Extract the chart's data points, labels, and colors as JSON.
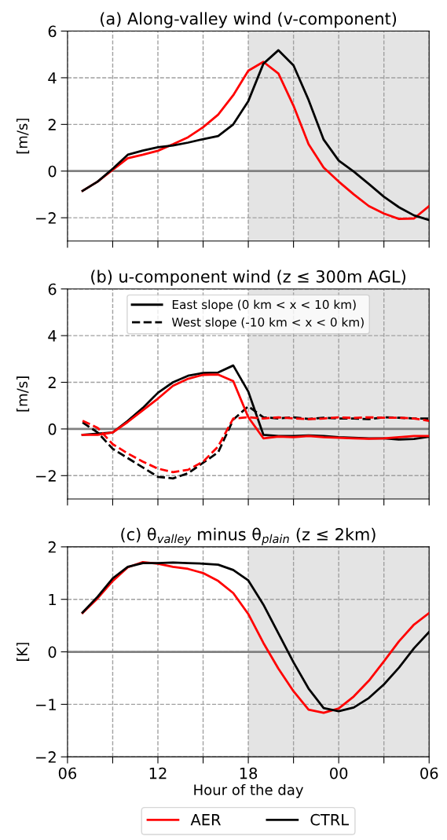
{
  "chart_data": [
    {
      "type": "line",
      "title": "(a) Along-valley wind (v-component)",
      "ylabel": "[m/s]",
      "x": [
        7,
        8,
        9,
        10,
        11,
        12,
        13,
        14,
        15,
        16,
        17,
        18,
        19,
        20,
        21,
        22,
        23,
        24,
        25,
        26,
        27,
        28,
        29,
        30
      ],
      "series": [
        {
          "color": "#ff0000",
          "values": [
            -0.85,
            -0.45,
            0.05,
            0.55,
            0.7,
            0.87,
            1.15,
            1.45,
            1.88,
            2.42,
            3.25,
            4.3,
            4.68,
            4.18,
            2.8,
            1.15,
            0.15,
            -0.45,
            -1.0,
            -1.5,
            -1.82,
            -2.05,
            -2.03,
            -1.5
          ]
        },
        {
          "color": "#000000",
          "values": [
            -0.85,
            -0.45,
            0.1,
            0.7,
            0.88,
            1.02,
            1.1,
            1.22,
            1.37,
            1.5,
            2.0,
            3.0,
            4.6,
            5.18,
            4.53,
            3.05,
            1.35,
            0.45,
            -0.02,
            -0.55,
            -1.1,
            -1.55,
            -1.9,
            -2.1
          ]
        }
      ],
      "xlim": [
        6,
        30
      ],
      "xticks": [
        6,
        9,
        12,
        15,
        18,
        21,
        24,
        27,
        30
      ],
      "ylim": [
        -3,
        6
      ],
      "yticks": [
        -2,
        0,
        2,
        4,
        6
      ],
      "tick_labels": "y",
      "grid": true,
      "line_style": "solid",
      "ref_lines": [
        {
          "axis": "y",
          "value": 0,
          "color": "#808080"
        }
      ],
      "bands": [
        {
          "axis": "x",
          "from": 18,
          "to": 30,
          "color": "#e4e4e4"
        }
      ]
    },
    {
      "type": "line",
      "title": "(b) u-component wind (z ≤ 300m AGL)",
      "ylabel": "[m/s]",
      "x": [
        7,
        8,
        9,
        10,
        11,
        12,
        13,
        14,
        15,
        16,
        17,
        18,
        19,
        20,
        21,
        22,
        23,
        24,
        25,
        26,
        27,
        28,
        29,
        30
      ],
      "series": [
        {
          "name": "East slope (0 km < x < 10 km)",
          "color": "#000000",
          "line_style": "solid",
          "values": [
            -0.25,
            -0.2,
            -0.15,
            0.35,
            0.9,
            1.55,
            2.0,
            2.28,
            2.4,
            2.42,
            2.72,
            1.6,
            -0.25,
            -0.3,
            -0.3,
            -0.28,
            -0.3,
            -0.35,
            -0.38,
            -0.4,
            -0.4,
            -0.45,
            -0.43,
            -0.33
          ]
        },
        {
          "name": "West slope (-10 km < x < 0 km)",
          "color": "#000000",
          "line_style": "dashed",
          "values": [
            0.28,
            -0.15,
            -0.85,
            -1.25,
            -1.65,
            -2.05,
            -2.12,
            -1.9,
            -1.45,
            -1.0,
            0.4,
            0.97,
            0.5,
            0.45,
            0.5,
            0.43,
            0.48,
            0.45,
            0.45,
            0.42,
            0.5,
            0.48,
            0.45,
            0.45
          ]
        },
        {
          "color": "#ff0000",
          "line_style": "solid",
          "values": [
            -0.25,
            -0.25,
            -0.15,
            0.3,
            0.8,
            1.3,
            1.85,
            2.15,
            2.32,
            2.33,
            2.05,
            0.5,
            -0.4,
            -0.33,
            -0.35,
            -0.3,
            -0.35,
            -0.38,
            -0.4,
            -0.42,
            -0.4,
            -0.35,
            -0.3,
            -0.3
          ]
        },
        {
          "color": "#ff0000",
          "line_style": "dashed",
          "values": [
            0.35,
            0.05,
            -0.65,
            -1.05,
            -1.4,
            -1.7,
            -1.85,
            -1.75,
            -1.4,
            -0.75,
            0.45,
            0.5,
            0.45,
            0.5,
            0.45,
            0.42,
            0.45,
            0.5,
            0.47,
            0.5,
            0.48,
            0.48,
            0.45,
            0.35
          ]
        }
      ],
      "xlim": [
        6,
        30
      ],
      "xticks": [
        6,
        9,
        12,
        15,
        18,
        21,
        24,
        27,
        30
      ],
      "ylim": [
        -3,
        6
      ],
      "yticks": [
        -2,
        0,
        2,
        4,
        6
      ],
      "tick_labels": "y",
      "grid": true,
      "legend": "top",
      "ref_lines": [
        {
          "axis": "y",
          "value": 0,
          "color": "#808080"
        }
      ],
      "bands": [
        {
          "axis": "x",
          "from": 18,
          "to": 30,
          "color": "#e4e4e4"
        }
      ]
    },
    {
      "type": "line",
      "title": "(c) θ$_{valley}$ minus θ$_{plain}$ (z ≤ 2km)",
      "ylabel": "[K]",
      "xlabel": "Hour of the day",
      "x": [
        7,
        8,
        9,
        10,
        11,
        12,
        13,
        14,
        15,
        16,
        17,
        18,
        19,
        20,
        21,
        22,
        23,
        24,
        25,
        26,
        27,
        28,
        29,
        30
      ],
      "series": [
        {
          "name": "AER",
          "color": "#ff0000",
          "values": [
            0.74,
            1.02,
            1.35,
            1.61,
            1.71,
            1.68,
            1.62,
            1.58,
            1.5,
            1.35,
            1.12,
            0.72,
            0.17,
            -0.32,
            -0.75,
            -1.1,
            -1.16,
            -1.08,
            -0.85,
            -0.55,
            -0.18,
            0.2,
            0.52,
            0.74
          ]
        },
        {
          "name": "CTRL",
          "color": "#000000",
          "values": [
            0.75,
            1.05,
            1.4,
            1.62,
            1.69,
            1.69,
            1.7,
            1.69,
            1.68,
            1.66,
            1.56,
            1.36,
            0.9,
            0.35,
            -0.2,
            -0.7,
            -1.07,
            -1.13,
            -1.06,
            -0.88,
            -0.62,
            -0.3,
            0.07,
            0.38
          ]
        }
      ],
      "xlim": [
        6,
        30
      ],
      "xticks": [
        {
          "value": 6,
          "label": "06"
        },
        {
          "value": 9,
          "label": null
        },
        12,
        {
          "value": 15,
          "label": null
        },
        18,
        {
          "value": 21,
          "label": null
        },
        {
          "value": 24,
          "label": "00"
        },
        {
          "value": 27,
          "label": null
        },
        {
          "value": 30,
          "label": "06"
        }
      ],
      "ylim": [
        -2,
        2
      ],
      "yticks": [
        -2,
        -1,
        0,
        1,
        2
      ],
      "grid": true,
      "legend": "bottom",
      "line_style": "solid",
      "ref_lines": [
        {
          "axis": "y",
          "value": 0,
          "color": "#808080"
        }
      ],
      "bands": [
        {
          "axis": "x",
          "from": 18,
          "to": 30,
          "color": "#e4e4e4"
        }
      ]
    }
  ]
}
